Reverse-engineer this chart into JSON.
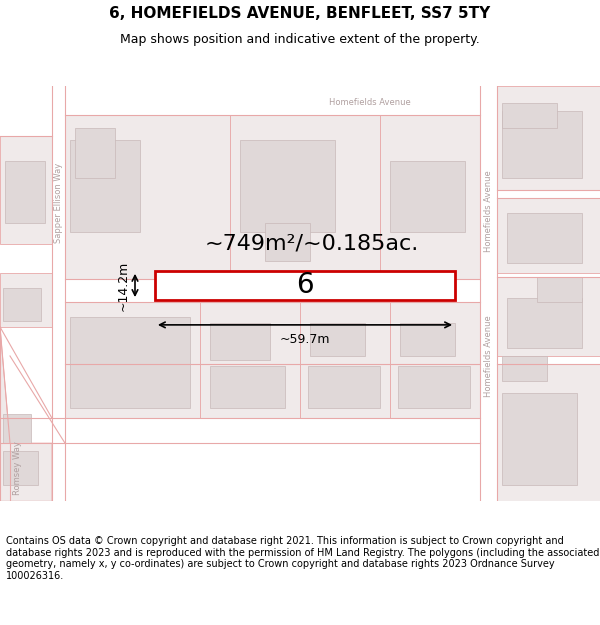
{
  "title": "6, HOMEFIELDS AVENUE, BENFLEET, SS7 5TY",
  "subtitle": "Map shows position and indicative extent of the property.",
  "area_label": "~749m²/~0.185ac.",
  "property_number": "6",
  "width_label": "~59.7m",
  "height_label": "~14.2m",
  "footer": "Contains OS data © Crown copyright and database right 2021. This information is subject to Crown copyright and database rights 2023 and is reproduced with the permission of HM Land Registry. The polygons (including the associated geometry, namely x, y co-ordinates) are subject to Crown copyright and database rights 2023 Ordnance Survey 100026316.",
  "bg_color": "#ffffff",
  "map_bg": "#f5f0f0",
  "road_color": "#e8a8a8",
  "road_lw": 0.8,
  "building_fill": "#e0d8d8",
  "building_edge": "#c8b8b8",
  "building_lw": 0.5,
  "lot_fill": "#f0eaea",
  "lot_edge": "#e8a8a8",
  "lot_lw": 0.6,
  "property_fill": "#ffffff",
  "property_border": "#cc0000",
  "property_lw": 2.0,
  "road_label_color": "#b0a0a0",
  "title_fontsize": 11,
  "subtitle_fontsize": 9,
  "footer_fontsize": 7,
  "area_fontsize": 16,
  "prop_num_fontsize": 20,
  "meas_fontsize": 9
}
